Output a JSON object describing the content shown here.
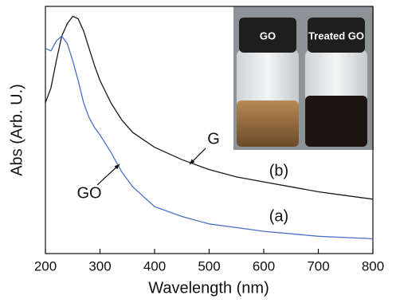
{
  "chart_data": {
    "type": "line",
    "xlabel": "Wavelength (nm)",
    "ylabel": "Abs (Arb. U.)",
    "x": [
      200,
      210,
      220,
      230,
      240,
      250,
      260,
      270,
      280,
      290,
      300,
      320,
      340,
      360,
      380,
      400,
      450,
      500,
      550,
      600,
      650,
      700,
      750,
      800
    ],
    "series": [
      {
        "name": "(b)",
        "color": "#1a1a1a",
        "values": [
          0.61,
          0.67,
          0.78,
          0.88,
          0.93,
          0.96,
          0.95,
          0.9,
          0.83,
          0.76,
          0.7,
          0.61,
          0.54,
          0.49,
          0.46,
          0.43,
          0.38,
          0.34,
          0.31,
          0.29,
          0.27,
          0.25,
          0.235,
          0.22
        ]
      },
      {
        "name": "(a)",
        "color": "#4a6fc9",
        "values": [
          0.83,
          0.82,
          0.86,
          0.88,
          0.85,
          0.78,
          0.7,
          0.61,
          0.55,
          0.51,
          0.48,
          0.41,
          0.33,
          0.27,
          0.23,
          0.19,
          0.15,
          0.12,
          0.105,
          0.09,
          0.08,
          0.07,
          0.065,
          0.06
        ]
      }
    ],
    "annotations": [
      "G",
      "GO"
    ],
    "inset_labels": [
      "GO",
      "Treated GO"
    ],
    "xlim": [
      200,
      800
    ],
    "xticks": [
      200,
      300,
      400,
      500,
      600,
      700,
      800
    ],
    "ylim": [
      0,
      1
    ]
  }
}
